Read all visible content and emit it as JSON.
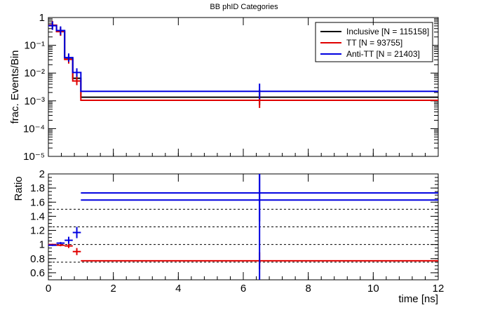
{
  "chart_data": [
    {
      "type": "line",
      "title": "BB phID Categories",
      "xlabel": "time [ns]",
      "ylabel": "frac. Events/Bin",
      "xlim": [
        0,
        12
      ],
      "ylim": [
        1e-05,
        1
      ],
      "yscale": "log",
      "bin_edges": [
        0,
        0.25,
        0.5,
        0.75,
        1.0,
        12
      ],
      "y_tick_labels": [
        "10⁻⁵",
        "10⁻⁴",
        "10⁻³",
        "10⁻²",
        "10⁻¹",
        "1"
      ],
      "legend_position": "top-right",
      "series": [
        {
          "name": "Inclusive [N = 115158]",
          "color": "#000000",
          "values": [
            0.52,
            0.32,
            0.035,
            0.0065,
            0.00135
          ]
        },
        {
          "name": "TT [N = 93755]",
          "color": "#e00000",
          "values": [
            0.53,
            0.31,
            0.031,
            0.0052,
            0.00105
          ]
        },
        {
          "name": "Anti-TT [N = 21403]",
          "color": "#0000e0",
          "values": [
            0.51,
            0.34,
            0.036,
            0.0105,
            0.0022
          ]
        }
      ]
    },
    {
      "type": "scatter",
      "xlabel": "time [ns]",
      "ylabel": "Ratio",
      "xlim": [
        0,
        12
      ],
      "ylim": [
        0.5,
        2
      ],
      "x_ticks": [
        "0",
        "2",
        "4",
        "6",
        "8",
        "10",
        "12"
      ],
      "y_ticks": [
        "0.6",
        "0.8",
        "1",
        "1.2",
        "1.4",
        "1.6",
        "1.8",
        "2"
      ],
      "reference_lines": [
        0.75,
        1.0,
        1.25,
        1.5
      ],
      "series": [
        {
          "name": "TT [N = 93755]",
          "color": "#e00000",
          "x": [
            0.125,
            0.375,
            0.625,
            0.875,
            6.5
          ],
          "x_halfwidth": [
            0.125,
            0.125,
            0.125,
            0.125,
            5.5
          ],
          "y": [
            1.0,
            0.99,
            0.98,
            0.9,
            0.77
          ],
          "y_err": [
            0.01,
            0.015,
            0.03,
            0.05,
            0.12
          ]
        },
        {
          "name": "Anti-TT [N = 21403]",
          "color": "#0000e0",
          "x": [
            0.125,
            0.375,
            0.625,
            0.875,
            6.5
          ],
          "x_halfwidth": [
            0.125,
            0.125,
            0.125,
            0.125,
            5.5
          ],
          "y": [
            0.99,
            1.02,
            1.06,
            1.17,
            1.73
          ],
          "y_err": [
            0.01,
            0.015,
            0.05,
            0.08,
            0.4
          ]
        }
      ],
      "extra_series": [
        {
          "name": "Anti-TT [N = 21403]",
          "color": "#0000e0",
          "x": 6.5,
          "x_halfwidth": 5.5,
          "y": 1.63,
          "y_err": 1.2
        }
      ]
    }
  ]
}
